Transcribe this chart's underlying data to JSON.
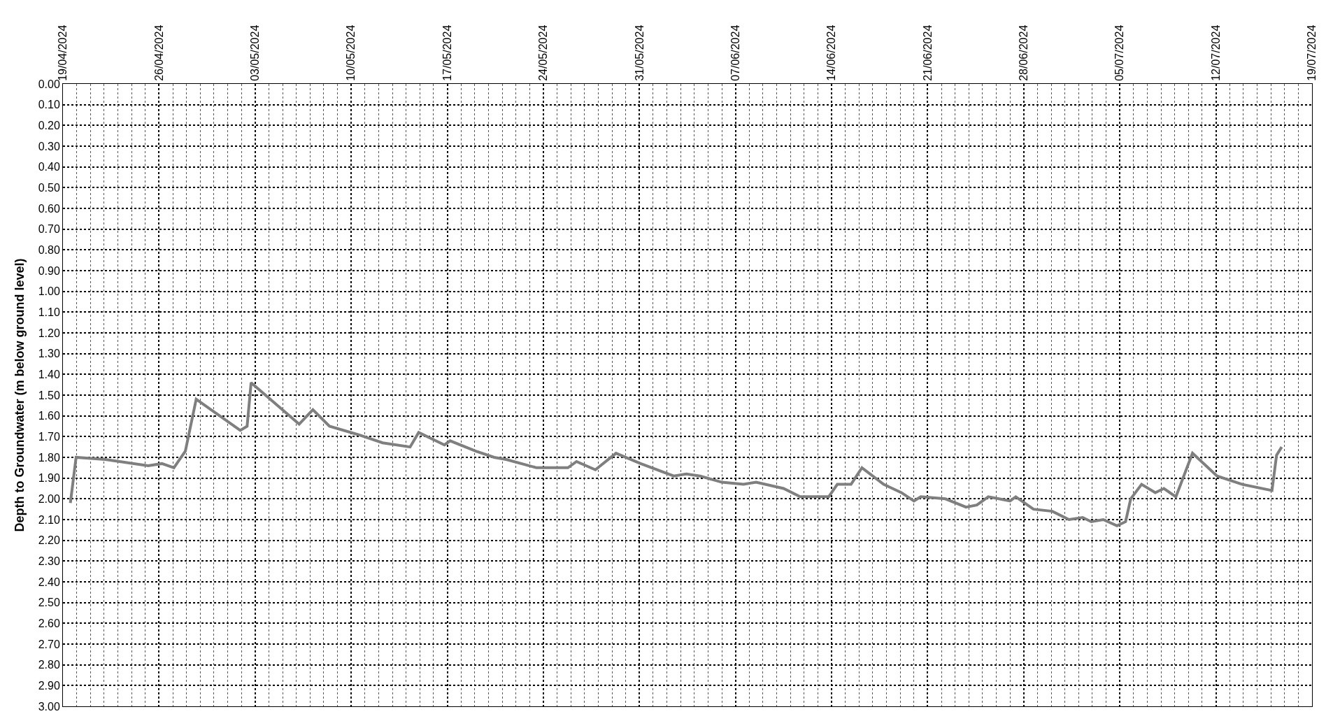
{
  "chart_data": {
    "type": "line",
    "ylabel": "Depth to Groundwater (m below ground level)",
    "x": [
      "2024-04-19T13:00",
      "2024-04-19T23:00",
      "2024-04-22T02:00",
      "2024-04-25T05:00",
      "2024-04-26T05:00",
      "2024-04-27T02:00",
      "2024-04-27T22:00",
      "2024-04-28T17:00",
      "2024-05-01T22:00",
      "2024-05-02T10:00",
      "2024-05-02T17:00",
      "2024-05-06T05:00",
      "2024-05-07T05:00",
      "2024-05-08T10:00",
      "2024-05-10T12:00",
      "2024-05-12T07:00",
      "2024-05-14T07:00",
      "2024-05-14T22:00",
      "2024-05-16T19:00",
      "2024-05-17T05:00",
      "2024-05-19T02:00",
      "2024-05-20T10:00",
      "2024-05-21T07:00",
      "2024-05-23T12:00",
      "2024-05-25T19:00",
      "2024-05-26T10:00",
      "2024-05-27T19:00",
      "2024-05-29T07:00",
      "2024-05-31T02:00",
      "2024-06-02T12:00",
      "2024-06-03T10:00",
      "2024-06-04T10:00",
      "2024-06-06T00:00",
      "2024-06-07T14:00",
      "2024-06-08T12:00",
      "2024-06-10T12:00",
      "2024-06-11T17:00",
      "2024-06-13T19:00",
      "2024-06-14T10:00",
      "2024-06-15T10:00",
      "2024-06-16T05:00",
      "2024-06-17T19:00",
      "2024-06-19T02:00",
      "2024-06-20T00:00",
      "2024-06-20T12:00",
      "2024-06-22T07:00",
      "2024-06-23T19:00",
      "2024-06-24T14:00",
      "2024-06-25T10:00",
      "2024-06-27T00:00",
      "2024-06-27T10:00",
      "2024-06-28T17:00",
      "2024-06-30T02:00",
      "2024-07-01T07:00",
      "2024-07-02T07:00",
      "2024-07-02T22:00",
      "2024-07-03T19:00",
      "2024-07-04T19:00",
      "2024-07-05T10:00",
      "2024-07-05T19:00",
      "2024-07-06T14:00",
      "2024-07-07T14:00",
      "2024-07-08T05:00",
      "2024-07-09T02:00",
      "2024-07-10T07:00",
      "2024-07-12T02:00",
      "2024-07-13T22:00",
      "2024-07-16T02:00",
      "2024-07-16T10:00",
      "2024-07-16T19:00"
    ],
    "series": [
      {
        "color": "#7f7f7f",
        "values": [
          2.02,
          1.8,
          1.81,
          1.84,
          1.83,
          1.85,
          1.77,
          1.52,
          1.67,
          1.65,
          1.44,
          1.64,
          1.57,
          1.65,
          1.69,
          1.73,
          1.75,
          1.68,
          1.74,
          1.72,
          1.77,
          1.8,
          1.81,
          1.85,
          1.85,
          1.82,
          1.86,
          1.78,
          1.83,
          1.89,
          1.88,
          1.89,
          1.92,
          1.93,
          1.92,
          1.95,
          1.99,
          1.99,
          1.93,
          1.93,
          1.85,
          1.93,
          1.97,
          2.01,
          1.99,
          2.0,
          2.04,
          2.03,
          1.99,
          2.01,
          1.99,
          2.05,
          2.06,
          2.1,
          2.09,
          2.11,
          2.1,
          2.13,
          2.11,
          2.0,
          1.93,
          1.97,
          1.95,
          1.99,
          1.78,
          1.89,
          1.93,
          1.96,
          1.79,
          1.75
        ]
      }
    ],
    "xlim": [
      "2024-04-19",
      "2024-07-19"
    ],
    "xticks": [
      {
        "value": "2024-04-19",
        "label": "19/04/2024"
      },
      {
        "value": "2024-04-26",
        "label": "26/04/2024"
      },
      {
        "value": "2024-05-03",
        "label": "03/05/2024"
      },
      {
        "value": "2024-05-10",
        "label": "10/05/2024"
      },
      {
        "value": "2024-05-17",
        "label": "17/05/2024"
      },
      {
        "value": "2024-05-24",
        "label": "24/05/2024"
      },
      {
        "value": "2024-05-31",
        "label": "31/05/2024"
      },
      {
        "value": "2024-06-07",
        "label": "07/06/2024"
      },
      {
        "value": "2024-06-14",
        "label": "14/06/2024"
      },
      {
        "value": "2024-06-21",
        "label": "21/06/2024"
      },
      {
        "value": "2024-06-28",
        "label": "28/06/2024"
      },
      {
        "value": "2024-07-05",
        "label": "05/07/2024"
      },
      {
        "value": "2024-07-12",
        "label": "12/07/2024"
      },
      {
        "value": "2024-07-19",
        "label": "19/07/2024"
      }
    ],
    "ylim": [
      3.0,
      0.0
    ],
    "yticks": [
      {
        "value": 0.0,
        "label": "0.00"
      },
      {
        "value": 0.1,
        "label": "0.10"
      },
      {
        "value": 0.2,
        "label": "0.20"
      },
      {
        "value": 0.3,
        "label": "0.30"
      },
      {
        "value": 0.4,
        "label": "0.40"
      },
      {
        "value": 0.5,
        "label": "0.50"
      },
      {
        "value": 0.6,
        "label": "0.60"
      },
      {
        "value": 0.7,
        "label": "0.70"
      },
      {
        "value": 0.8,
        "label": "0.80"
      },
      {
        "value": 0.9,
        "label": "0.90"
      },
      {
        "value": 1.0,
        "label": "1.00"
      },
      {
        "value": 1.1,
        "label": "1.10"
      },
      {
        "value": 1.2,
        "label": "1.20"
      },
      {
        "value": 1.3,
        "label": "1.30"
      },
      {
        "value": 1.4,
        "label": "1.40"
      },
      {
        "value": 1.5,
        "label": "1.50"
      },
      {
        "value": 1.6,
        "label": "1.60"
      },
      {
        "value": 1.7,
        "label": "1.70"
      },
      {
        "value": 1.8,
        "label": "1.80"
      },
      {
        "value": 1.9,
        "label": "1.90"
      },
      {
        "value": 2.0,
        "label": "2.00"
      },
      {
        "value": 2.1,
        "label": "2.10"
      },
      {
        "value": 2.2,
        "label": "2.20"
      },
      {
        "value": 2.3,
        "label": "2.30"
      },
      {
        "value": 2.4,
        "label": "2.40"
      },
      {
        "value": 2.5,
        "label": "2.50"
      },
      {
        "value": 2.6,
        "label": "2.60"
      },
      {
        "value": 2.7,
        "label": "2.70"
      },
      {
        "value": 2.8,
        "label": "2.80"
      },
      {
        "value": 2.9,
        "label": "2.90"
      },
      {
        "value": 3.0,
        "label": "3.00"
      }
    ],
    "grid": true,
    "line_style": "solid",
    "marker": "none"
  }
}
